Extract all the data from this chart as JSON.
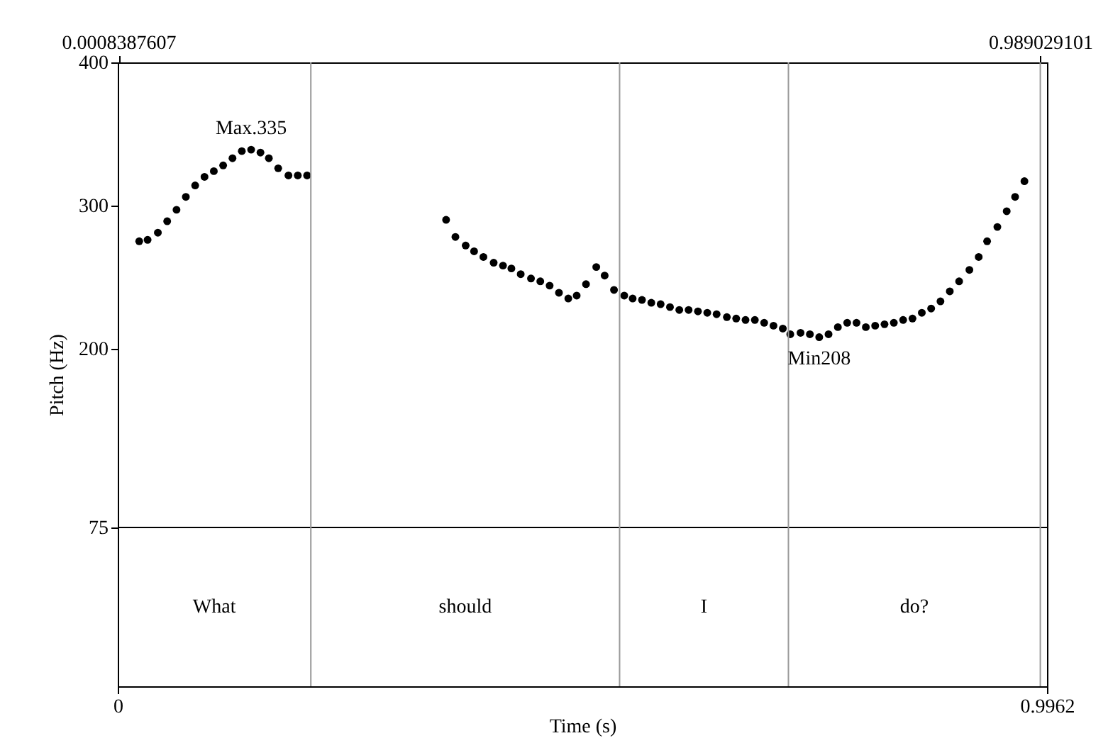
{
  "chart_data": {
    "type": "scatter",
    "xlabel": "Time (s)",
    "ylabel": "Pitch (Hz)",
    "xlim": [
      0,
      0.9962
    ],
    "xticks": [
      0,
      0.9962
    ],
    "x2lim": [
      0,
      0.9962
    ],
    "x2ticks": [
      0.0008387607,
      0.989029101
    ],
    "ylim": [
      -36,
      400
    ],
    "yticks": [
      75,
      200,
      300,
      400
    ],
    "grid": false,
    "marker": "circle",
    "x": [
      0.023,
      0.032,
      0.043,
      0.053,
      0.063,
      0.073,
      0.083,
      0.093,
      0.103,
      0.113,
      0.123,
      0.133,
      0.143,
      0.153,
      0.162,
      0.172,
      0.183,
      0.193,
      0.203,
      0.352,
      0.362,
      0.373,
      0.382,
      0.392,
      0.403,
      0.413,
      0.422,
      0.432,
      0.443,
      0.453,
      0.463,
      0.473,
      0.483,
      0.492,
      0.502,
      0.513,
      0.522,
      0.532,
      0.543,
      0.552,
      0.562,
      0.572,
      0.582,
      0.592,
      0.602,
      0.612,
      0.622,
      0.632,
      0.642,
      0.653,
      0.663,
      0.673,
      0.683,
      0.693,
      0.703,
      0.713,
      0.721,
      0.732,
      0.742,
      0.752,
      0.762,
      0.772,
      0.782,
      0.792,
      0.802,
      0.812,
      0.822,
      0.832,
      0.842,
      0.852,
      0.862,
      0.872,
      0.882,
      0.892,
      0.902,
      0.913,
      0.923,
      0.932,
      0.943,
      0.953,
      0.962,
      0.972
    ],
    "series": [
      {
        "color": "#000000",
        "values": [
          275,
          276,
          281,
          289,
          297,
          306,
          314,
          320,
          324,
          328,
          333,
          338,
          339,
          337,
          333,
          326,
          321,
          321,
          321,
          290,
          278,
          272,
          268,
          264,
          260,
          258,
          256,
          252,
          249,
          247,
          244,
          239,
          235,
          237,
          245,
          257,
          251,
          241,
          237,
          235,
          234,
          232,
          231,
          229,
          227,
          227,
          226,
          225,
          224,
          222,
          221,
          220,
          220,
          218,
          216,
          214,
          210,
          211,
          210,
          208,
          210,
          215,
          218,
          218,
          215,
          216,
          217,
          218,
          220,
          221,
          225,
          228,
          233,
          240,
          247,
          255,
          264,
          275,
          285,
          296,
          306,
          317
        ]
      }
    ],
    "ref_lines": [
      {
        "axis": "y",
        "value": 75,
        "color": "#000000"
      },
      {
        "axis": "x",
        "value": 0.207,
        "color": "#999999"
      },
      {
        "axis": "x",
        "value": 0.538,
        "color": "#999999"
      },
      {
        "axis": "x",
        "value": 0.719,
        "color": "#999999"
      },
      {
        "axis": "x",
        "value": 0.989029101,
        "color": "#999999"
      }
    ],
    "annotations": [
      {
        "text": "Max.335",
        "x": 0.143,
        "y": 339
      },
      {
        "text": "Min208",
        "x": 0.752,
        "y": 208
      },
      "What",
      "should",
      "I",
      "do?"
    ]
  }
}
